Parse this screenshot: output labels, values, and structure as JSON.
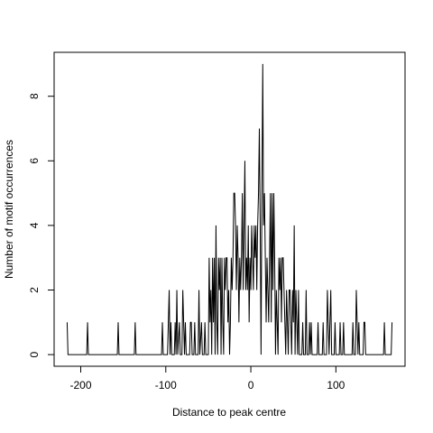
{
  "chart_data": {
    "type": "line",
    "x_label": "Distance to peak centre",
    "y_label": "Number of motif occurrences",
    "color": "#000000",
    "xlim": [
      -231.3,
      181.3
    ],
    "ylim": [
      -0.36,
      9.36
    ],
    "xticks": [
      -200,
      -100,
      0,
      100
    ],
    "yticks": [
      0,
      2,
      4,
      6,
      8
    ],
    "grid": false,
    "x": [
      -216,
      -215,
      -193,
      -192,
      -191,
      -157,
      -156,
      -155,
      -137,
      -136,
      -135,
      -105,
      -104,
      -103,
      -98,
      -97,
      -96,
      -95,
      -94,
      -93,
      -90,
      -89,
      -88,
      -87,
      -86,
      -84,
      -83,
      -81,
      -80,
      -79,
      -78,
      -77,
      -76,
      -72,
      -71,
      -70,
      -69,
      -67,
      -66,
      -65,
      -62,
      -61,
      -60,
      -58,
      -57,
      -55,
      -54,
      -53,
      -50,
      -49,
      -48,
      -47,
      -46,
      -45,
      -44,
      -43,
      -42,
      -41,
      -40,
      -39,
      -38,
      -37,
      -36,
      -35,
      -34,
      -33,
      -32,
      -31,
      -30,
      -29,
      -28,
      -27,
      -26,
      -25,
      -24,
      -23,
      -22,
      -21,
      -20,
      -19,
      -18,
      -17,
      -16,
      -15,
      -14,
      -13,
      -12,
      -11,
      -10,
      -9,
      -8,
      -7,
      -6,
      -5,
      -4,
      -3,
      -2,
      -1,
      0,
      1,
      2,
      3,
      4,
      5,
      6,
      7,
      8,
      9,
      10,
      11,
      12,
      13,
      14,
      15,
      16,
      17,
      18,
      19,
      20,
      21,
      22,
      23,
      24,
      25,
      26,
      27,
      28,
      29,
      30,
      31,
      32,
      33,
      34,
      35,
      36,
      37,
      38,
      39,
      40,
      41,
      42,
      43,
      44,
      45,
      46,
      47,
      48,
      49,
      50,
      51,
      52,
      53,
      54,
      55,
      56,
      57,
      60,
      61,
      62,
      64,
      65,
      66,
      68,
      69,
      70,
      71,
      72,
      78,
      79,
      80,
      84,
      85,
      86,
      89,
      90,
      91,
      92,
      94,
      95,
      98,
      99,
      100,
      104,
      105,
      106,
      108,
      109,
      110,
      119,
      120,
      121,
      123,
      124,
      125,
      126,
      127,
      128,
      132,
      133,
      134,
      135,
      156,
      157,
      158,
      165,
      166
    ],
    "values": [
      1,
      0,
      0,
      1,
      0,
      0,
      1,
      0,
      0,
      1,
      0,
      0,
      1,
      0,
      0,
      1,
      2,
      0,
      1,
      0,
      0,
      1,
      0,
      2,
      0,
      1,
      0,
      0,
      2,
      1,
      0,
      1,
      0,
      0,
      1,
      1,
      0,
      0,
      1,
      0,
      0,
      2,
      0,
      1,
      0,
      0,
      1,
      0,
      0,
      3,
      1,
      2,
      0,
      3,
      1,
      3,
      0,
      4,
      1,
      0,
      3,
      2,
      3,
      0,
      3,
      1,
      0,
      3,
      2,
      3,
      3,
      1,
      2,
      0,
      1,
      3,
      2,
      3,
      5,
      5,
      4,
      2,
      4,
      3,
      1,
      3,
      2,
      3,
      5,
      2,
      4,
      6,
      2,
      3,
      2,
      4,
      1,
      3,
      2,
      4,
      3,
      2,
      4,
      3,
      4,
      2,
      4,
      5,
      7,
      4,
      0,
      5,
      9,
      4,
      5,
      3,
      1,
      3,
      2,
      1,
      3,
      5,
      1,
      5,
      2,
      5,
      3,
      0,
      2,
      1,
      0,
      3,
      2,
      3,
      1,
      3,
      3,
      2,
      1,
      0,
      2,
      1,
      0,
      2,
      2,
      1,
      0,
      2,
      1,
      4,
      0,
      2,
      1,
      0,
      2,
      0,
      0,
      1,
      0,
      0,
      2,
      0,
      0,
      1,
      0,
      1,
      0,
      0,
      1,
      0,
      0,
      1,
      0,
      0,
      2,
      1,
      0,
      2,
      0,
      0,
      1,
      0,
      0,
      1,
      0,
      0,
      1,
      0,
      0,
      1,
      0,
      0,
      2,
      1,
      0,
      1,
      0,
      0,
      1,
      1,
      0,
      0,
      1,
      0,
      0,
      1
    ]
  }
}
